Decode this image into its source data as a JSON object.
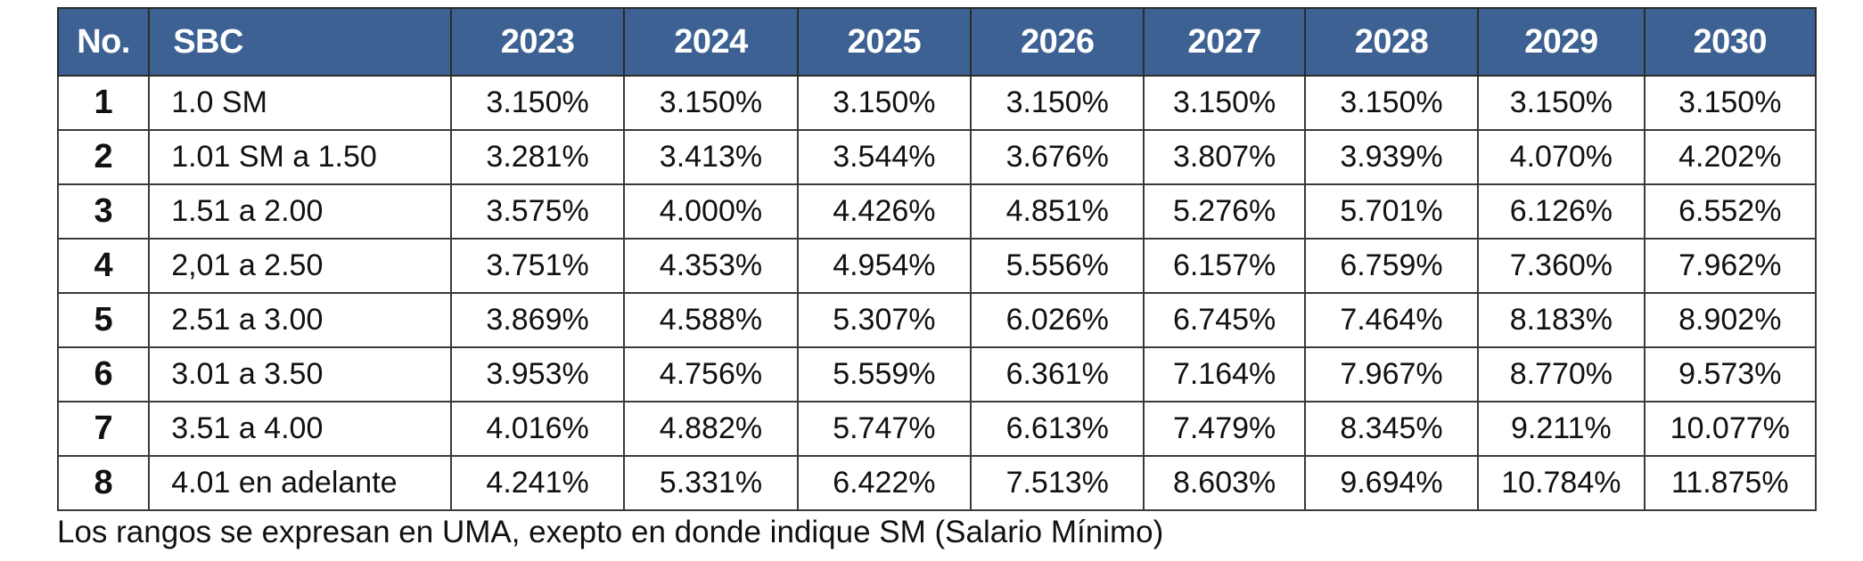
{
  "table": {
    "headers": [
      "No.",
      "SBC",
      "2023",
      "2024",
      "2025",
      "2026",
      "2027",
      "2028",
      "2029",
      "2030"
    ],
    "rows": [
      [
        "1",
        "1.0 SM",
        "3.150%",
        "3.150%",
        "3.150%",
        "3.150%",
        "3.150%",
        "3.150%",
        "3.150%",
        "3.150%"
      ],
      [
        "2",
        "1.01 SM a 1.50",
        "3.281%",
        "3.413%",
        "3.544%",
        "3.676%",
        "3.807%",
        "3.939%",
        "4.070%",
        "4.202%"
      ],
      [
        "3",
        "1.51 a 2.00",
        "3.575%",
        "4.000%",
        "4.426%",
        "4.851%",
        "5.276%",
        "5.701%",
        "6.126%",
        "6.552%"
      ],
      [
        "4",
        "2,01 a 2.50",
        "3.751%",
        "4.353%",
        "4.954%",
        "5.556%",
        "6.157%",
        "6.759%",
        "7.360%",
        "7.962%"
      ],
      [
        "5",
        "2.51 a 3.00",
        "3.869%",
        "4.588%",
        "5.307%",
        "6.026%",
        "6.745%",
        "7.464%",
        "8.183%",
        "8.902%"
      ],
      [
        "6",
        "3.01 a 3.50",
        "3.953%",
        "4.756%",
        "5.559%",
        "6.361%",
        "7.164%",
        "7.967%",
        "8.770%",
        "9.573%"
      ],
      [
        "7",
        "3.51 a 4.00",
        "4.016%",
        "4.882%",
        "5.747%",
        "6.613%",
        "7.479%",
        "8.345%",
        "9.211%",
        "10.077%"
      ],
      [
        "8",
        "4.01 en adelante",
        "4.241%",
        "5.331%",
        "6.422%",
        "7.513%",
        "8.603%",
        "9.694%",
        "10.784%",
        "11.875%"
      ]
    ]
  },
  "footnote": "Los rangos se expresan en UMA, exepto en donde indique SM (Salario Mínimo)",
  "colors": {
    "header_background": "#3c6192",
    "header_text": "#ffffff",
    "border": "#3a3a3a"
  }
}
